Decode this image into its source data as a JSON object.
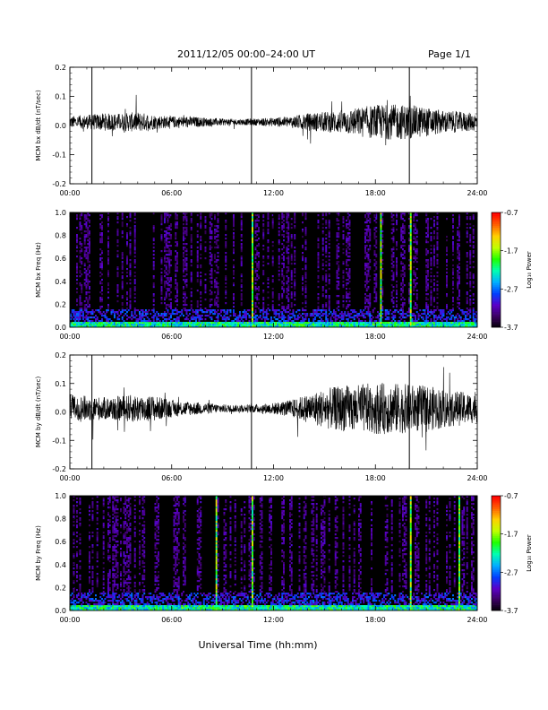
{
  "header": {
    "title": "2011/12/05  00:00–24:00 UT",
    "page": "Page 1/1"
  },
  "xaxis": {
    "ticks": [
      "00:00",
      "06:00",
      "12:00",
      "18:00",
      "24:00"
    ],
    "label": "Universal Time (hh:mm)"
  },
  "colorbar": {
    "label": "Log₁₀ Power",
    "ticks": [
      "-0.7",
      "-1.7",
      "-2.7",
      "-3.7"
    ],
    "colors": [
      "#000000",
      "#3a0060",
      "#5a00c8",
      "#0040ff",
      "#00b0ff",
      "#00ffb0",
      "#20ff00",
      "#c0ff00",
      "#ffd000",
      "#ff6000",
      "#ff0000"
    ]
  },
  "chart_data": [
    {
      "type": "line",
      "ylabel": "MCM bx dB/dt (nT/sec)",
      "xlim": [
        0,
        24
      ],
      "ylim": [
        -0.2,
        0.2
      ],
      "yticks": [
        "0.2",
        "0.1",
        "0.0",
        "-0.1",
        "-0.2"
      ],
      "x_unit": "hours UT",
      "spike_hours": [
        1.3,
        10.7,
        20.0
      ],
      "amplitude_profile": {
        "hours": [
          0,
          1,
          2,
          3,
          4,
          5,
          6,
          7,
          8,
          9,
          10,
          11,
          12,
          13,
          14,
          15,
          16,
          17,
          18,
          19,
          20,
          21,
          22,
          23,
          24
        ],
        "amplitude": [
          0.02,
          0.025,
          0.03,
          0.03,
          0.035,
          0.025,
          0.02,
          0.02,
          0.015,
          0.012,
          0.01,
          0.012,
          0.015,
          0.02,
          0.03,
          0.035,
          0.04,
          0.05,
          0.06,
          0.06,
          0.06,
          0.05,
          0.04,
          0.035,
          0.03
        ]
      },
      "line_color": "#000000"
    },
    {
      "type": "heatmap",
      "ylabel": "MCM bx Freq (Hz)",
      "xlim": [
        0,
        24
      ],
      "ylim": [
        0.0,
        1.0
      ],
      "yticks": [
        "1.0",
        "0.8",
        "0.6",
        "0.4",
        "0.2",
        "0.0"
      ],
      "zlim": [
        -3.7,
        -0.7
      ],
      "bright_streak_hours": [
        10.7,
        18.3,
        20.0
      ]
    },
    {
      "type": "line",
      "ylabel": "MCM by dB/dt (nT/sec)",
      "xlim": [
        0,
        24
      ],
      "ylim": [
        -0.2,
        0.2
      ],
      "yticks": [
        "0.2",
        "0.1",
        "0.0",
        "-0.1",
        "-0.2"
      ],
      "x_unit": "hours UT",
      "spike_hours": [
        1.3,
        10.7,
        20.0
      ],
      "amplitude_profile": {
        "hours": [
          0,
          1,
          2,
          3,
          4,
          5,
          6,
          7,
          8,
          9,
          10,
          11,
          12,
          13,
          14,
          15,
          16,
          17,
          18,
          19,
          20,
          21,
          22,
          23,
          24
        ],
        "amplitude": [
          0.05,
          0.045,
          0.04,
          0.045,
          0.05,
          0.045,
          0.03,
          0.025,
          0.02,
          0.015,
          0.012,
          0.015,
          0.02,
          0.03,
          0.05,
          0.07,
          0.08,
          0.085,
          0.09,
          0.09,
          0.085,
          0.08,
          0.07,
          0.06,
          0.05
        ]
      },
      "line_color": "#000000"
    },
    {
      "type": "heatmap",
      "ylabel": "MCM by Freq (Hz)",
      "xlim": [
        0,
        24
      ],
      "ylim": [
        0.0,
        1.0
      ],
      "yticks": [
        "1.0",
        "0.8",
        "0.6",
        "0.4",
        "0.2",
        "0.0"
      ],
      "zlim": [
        -3.7,
        -0.7
      ],
      "bright_streak_hours": [
        8.6,
        10.7,
        20.0,
        22.9
      ]
    }
  ]
}
